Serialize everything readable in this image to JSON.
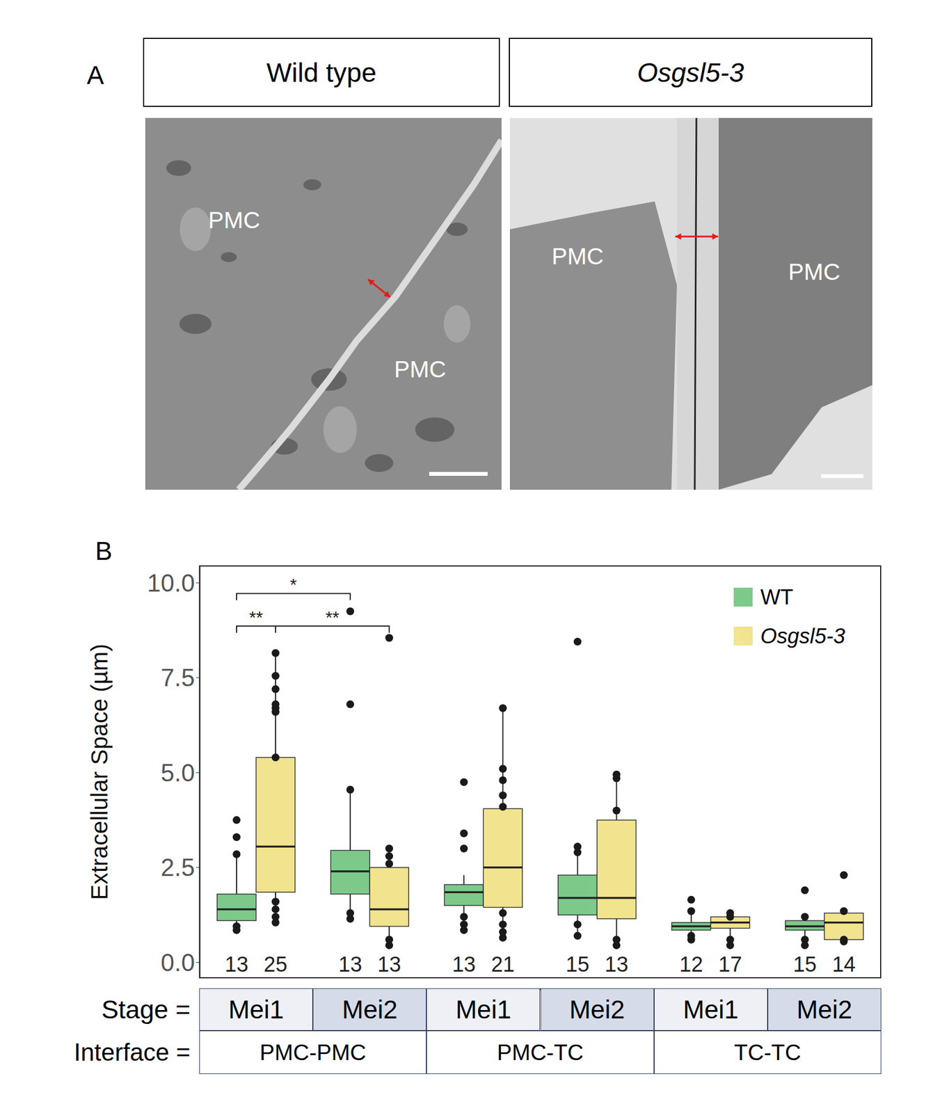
{
  "panel_a": {
    "label": "A",
    "panels": [
      {
        "title": "Wild type",
        "labels": [
          "PMC",
          "PMC"
        ]
      },
      {
        "title": "Osgsl5-3",
        "labels": [
          "PMC",
          "PMC"
        ]
      }
    ]
  },
  "panel_b": {
    "label": "B"
  },
  "chart_data": {
    "type": "box",
    "ylabel": "Extracellular Space (µm)",
    "category_title": "Stage =",
    "group_title": "Interface =",
    "categories": [
      "Mei1",
      "Mei2",
      "Mei1",
      "Mei2",
      "Mei1",
      "Mei2"
    ],
    "groups": [
      "PMC-PMC",
      "PMC-TC",
      "TC-TC"
    ],
    "ylim": [
      -0.42,
      10.46
    ],
    "yticks": [
      {
        "value": 0,
        "label": "0.0"
      },
      2.5,
      {
        "value": 5,
        "label": "5.0"
      },
      7.5,
      {
        "value": 10,
        "label": "10.0"
      }
    ],
    "legend": "top-right",
    "series": [
      {
        "name": "WT",
        "color": "#7dc98a",
        "whisker_low": [
          0.85,
          1.15,
          0.85,
          0.7,
          0.6,
          0.45
        ],
        "q1": [
          1.1,
          1.8,
          1.5,
          1.25,
          0.85,
          0.85
        ],
        "median": [
          1.4,
          2.4,
          1.85,
          1.7,
          0.95,
          0.95
        ],
        "q3": [
          1.8,
          2.95,
          2.05,
          2.3,
          1.05,
          1.1
        ],
        "whisker_high": [
          2.85,
          4.55,
          2.3,
          3.05,
          1.3,
          1.2
        ],
        "points": [
          [
            3.75,
            3.3,
            2.85,
            0.85,
            0.95
          ],
          [
            9.25,
            6.8,
            4.55,
            1.15,
            1.3
          ],
          [
            4.75,
            3.4,
            3.0,
            0.85,
            1.0,
            1.2
          ],
          [
            8.45,
            3.05,
            2.9,
            0.7,
            1.0
          ],
          [
            1.65,
            1.35,
            0.6,
            0.7
          ],
          [
            1.9,
            1.2,
            0.45,
            0.6
          ]
        ],
        "n": [
          13,
          13,
          13,
          15,
          12,
          15
        ]
      },
      {
        "name": "Osgsl5-3",
        "color": "#f2e38e",
        "whisker_low": [
          1.05,
          0.45,
          0.65,
          0.45,
          0.45,
          0.55
        ],
        "q1": [
          1.85,
          0.95,
          1.45,
          1.15,
          0.9,
          0.6
        ],
        "median": [
          3.05,
          1.4,
          2.5,
          1.7,
          1.05,
          1.05
        ],
        "q3": [
          5.4,
          2.5,
          4.05,
          3.75,
          1.2,
          1.3
        ],
        "whisker_high": [
          8.15,
          3.0,
          6.7,
          4.95,
          1.3,
          1.35
        ],
        "points": [
          [
            8.15,
            7.55,
            7.2,
            6.8,
            6.7,
            6.6,
            5.4,
            1.05,
            1.2,
            1.4,
            1.6
          ],
          [
            8.55,
            3.0,
            2.8,
            2.6,
            0.45,
            0.6
          ],
          [
            6.7,
            5.1,
            4.8,
            4.4,
            4.1,
            0.65,
            0.8,
            1.0,
            1.3
          ],
          [
            4.95,
            4.85,
            4.0,
            0.45,
            0.6
          ],
          [
            1.3,
            1.2,
            0.45,
            0.6
          ],
          [
            2.3,
            1.35,
            0.55,
            0.6
          ]
        ],
        "n": [
          25,
          13,
          21,
          13,
          17,
          14
        ]
      }
    ],
    "annotations": [
      {
        "text": "*",
        "from": [
          0,
          0
        ],
        "to": [
          1,
          0
        ],
        "y": 9.72
      },
      {
        "text": "**",
        "from": [
          0,
          0
        ],
        "to": [
          0,
          1
        ],
        "y": 8.86
      },
      {
        "text": "**",
        "from": [
          0,
          1
        ],
        "to": [
          1,
          1
        ],
        "y": 8.86
      }
    ]
  }
}
